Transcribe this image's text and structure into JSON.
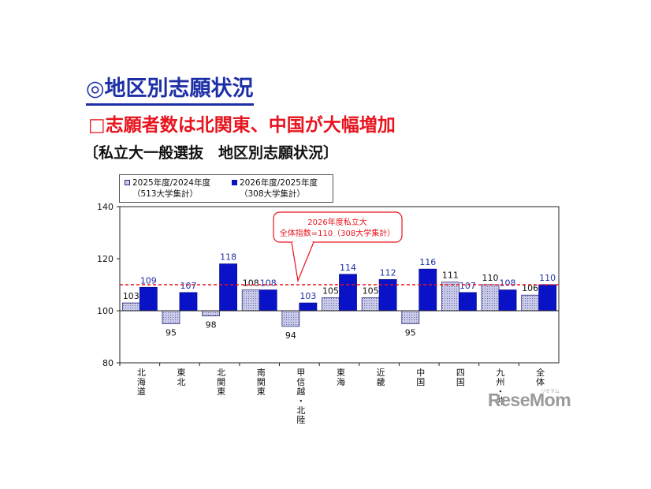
{
  "heading": "◎地区別志願状況",
  "subheading": "□志願者数は北関東、中国が大幅増加",
  "caption": "〔私立大一般選抜　地区別志願状況〕",
  "legend": {
    "series_a_name": "2025年度/2024年度",
    "series_a_note": "（513大学集計）",
    "series_b_name": "2026年度/2025年度",
    "series_b_note": "（308大学集計）"
  },
  "callout": {
    "line1": "2026年度私立大",
    "line2": "全体指数=110（308大学集計）"
  },
  "watermark": "ReseMom",
  "watermark_small": "リセマム",
  "colors": {
    "series_a": "#c9cbe8",
    "series_b": "#0a12c8",
    "reference": "#e8141e",
    "label_b": "#1d2fa6"
  },
  "chart_data": {
    "type": "bar",
    "categories": [
      "北海道",
      "東北",
      "北関東",
      "南関東",
      "甲信越・北陸",
      "東海",
      "近畿",
      "中国",
      "四国",
      "九州・沖縄",
      "全体"
    ],
    "category_labels": [
      "北\n海\n道",
      "東\n北",
      "北\n関\n東",
      "南\n関\n東",
      "甲\n信\n越\n・\n北\n陸",
      "東\n海",
      "近\n畿",
      "中\n国",
      "四\n国",
      "九\n州\n・\n沖",
      "全\n体"
    ],
    "series": [
      {
        "name": "2025年度/2024年度",
        "values": [
          103,
          95,
          98,
          108,
          94,
          105,
          105,
          95,
          111,
          110,
          106
        ]
      },
      {
        "name": "2026年度/2025年度",
        "values": [
          109,
          107,
          118,
          108,
          103,
          114,
          112,
          116,
          107,
          108,
          110
        ]
      }
    ],
    "baseline": 100,
    "reference_line": 110,
    "ylim": [
      80,
      140
    ],
    "yticks": [
      80,
      100,
      120,
      140
    ],
    "grid": false,
    "legend_position": "top-left"
  }
}
